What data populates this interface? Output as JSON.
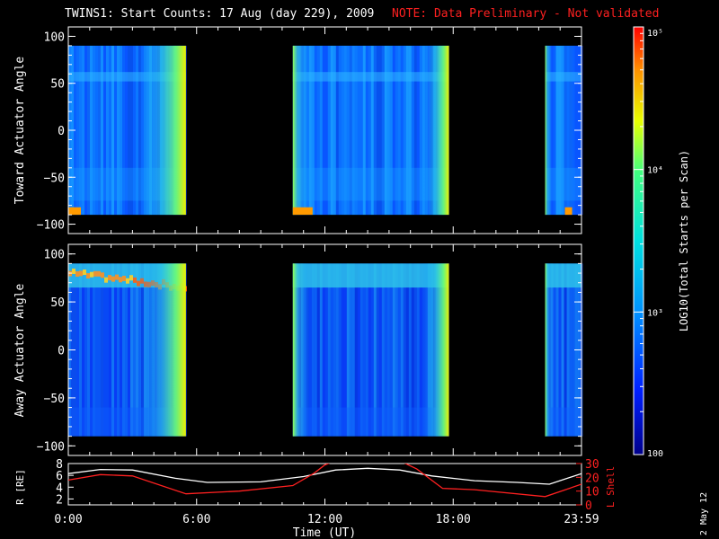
{
  "title": {
    "main": "TWINS1: Start Counts: 17 Aug (day 229), 2009",
    "note": "NOTE: Data Preliminary - Not validated"
  },
  "date_stamp": "2 May 12",
  "colorbar": {
    "label": "LOG10(Total Starts per Scan)",
    "tick_labels": [
      "100",
      "10³",
      "10⁴",
      "10⁵"
    ],
    "scale": "log",
    "range": [
      100,
      100000
    ]
  },
  "colors": {
    "note": "#ff2020",
    "l_shell": "#ff2020",
    "r_line": "#ffffff"
  },
  "chart_data": [
    {
      "type": "heatmap",
      "ylabel": "Toward Actuator Angle",
      "ylim": [
        -110,
        110
      ],
      "yticks": [
        "100",
        "50",
        "0",
        "−50",
        "−100"
      ],
      "xlim_hours": [
        0,
        24
      ],
      "data_intervals_hours": [
        [
          0,
          5.5
        ],
        [
          10.5,
          17.8
        ],
        [
          22.3,
          24
        ]
      ]
    },
    {
      "type": "heatmap",
      "ylabel": "Away Actuator Angle",
      "ylim": [
        -110,
        110
      ],
      "yticks": [
        "100",
        "50",
        "0",
        "−50",
        "−100"
      ],
      "xlim_hours": [
        0,
        24
      ],
      "data_intervals_hours": [
        [
          0,
          5.5
        ],
        [
          10.5,
          17.8
        ],
        [
          22.3,
          24
        ]
      ]
    },
    {
      "type": "line",
      "xlabel": "Time (UT)",
      "xticks": [
        "0:00",
        "6:00",
        "12:00",
        "18:00",
        "23:59"
      ],
      "ylabel": "R [RE]",
      "ylim": [
        1,
        8
      ],
      "yticks": [
        "8",
        "6",
        "4",
        "2"
      ],
      "y2label": "L Shell",
      "y2lim": [
        0,
        30
      ],
      "y2ticks": [
        "30",
        "20",
        "10",
        "0"
      ],
      "series": [
        {
          "name": "R [RE]",
          "x": [
            0,
            1.5,
            3,
            5,
            6.5,
            9,
            11,
            12.5,
            14,
            15.5,
            17,
            19,
            21,
            22.5,
            24
          ],
          "y": [
            6.3,
            7.0,
            6.9,
            5.5,
            4.8,
            4.9,
            5.8,
            6.9,
            7.2,
            6.9,
            5.9,
            5.1,
            4.8,
            4.5,
            6.3
          ]
        },
        {
          "name": "L Shell",
          "x": [
            0,
            1.5,
            3,
            5.5,
            8,
            10.5,
            11.5,
            12,
            12.5,
            13,
            15,
            15.5,
            16.3,
            17.5,
            19,
            22.3,
            24
          ],
          "y": [
            18,
            22,
            21,
            8,
            10,
            14,
            23,
            29,
            32,
            40,
            40,
            32,
            26,
            12,
            11,
            6,
            15
          ]
        }
      ]
    }
  ]
}
